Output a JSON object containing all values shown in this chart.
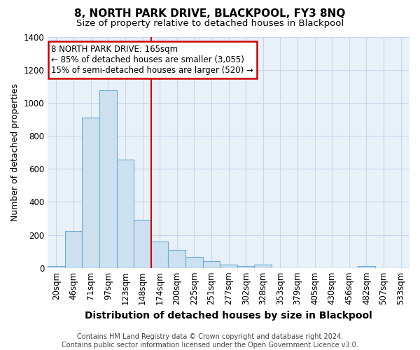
{
  "title": "8, NORTH PARK DRIVE, BLACKPOOL, FY3 8NQ",
  "subtitle": "Size of property relative to detached houses in Blackpool",
  "xlabel": "Distribution of detached houses by size in Blackpool",
  "ylabel": "Number of detached properties",
  "footnote": "Contains HM Land Registry data © Crown copyright and database right 2024.\nContains public sector information licensed under the Open Government Licence v3.0.",
  "categories": [
    "20sqm",
    "46sqm",
    "71sqm",
    "97sqm",
    "123sqm",
    "148sqm",
    "174sqm",
    "200sqm",
    "225sqm",
    "251sqm",
    "277sqm",
    "302sqm",
    "328sqm",
    "353sqm",
    "379sqm",
    "405sqm",
    "430sqm",
    "456sqm",
    "482sqm",
    "507sqm",
    "533sqm"
  ],
  "values": [
    10,
    225,
    910,
    1075,
    655,
    290,
    160,
    107,
    68,
    40,
    20,
    12,
    20,
    0,
    0,
    0,
    0,
    0,
    10,
    0,
    0
  ],
  "bar_color": "#cce0f0",
  "bar_edge_color": "#6aaed6",
  "vline_x": 5.5,
  "vline_color": "#cc0000",
  "ylim": [
    0,
    1400
  ],
  "yticks": [
    0,
    200,
    400,
    600,
    800,
    1000,
    1200,
    1400
  ],
  "annotation_text": "8 NORTH PARK DRIVE: 165sqm\n← 85% of detached houses are smaller (3,055)\n15% of semi-detached houses are larger (520) →",
  "annotation_box_color": "#ffffff",
  "annotation_box_edge": "#cc0000",
  "grid_color": "#c8d8ec",
  "plot_bg_color": "#e8f0f8",
  "figure_bg_color": "#ffffff",
  "title_fontsize": 11,
  "subtitle_fontsize": 9.5,
  "ylabel_fontsize": 9,
  "xlabel_fontsize": 10,
  "tick_fontsize": 8.5,
  "footnote_fontsize": 7,
  "annotation_fontsize": 8.5
}
